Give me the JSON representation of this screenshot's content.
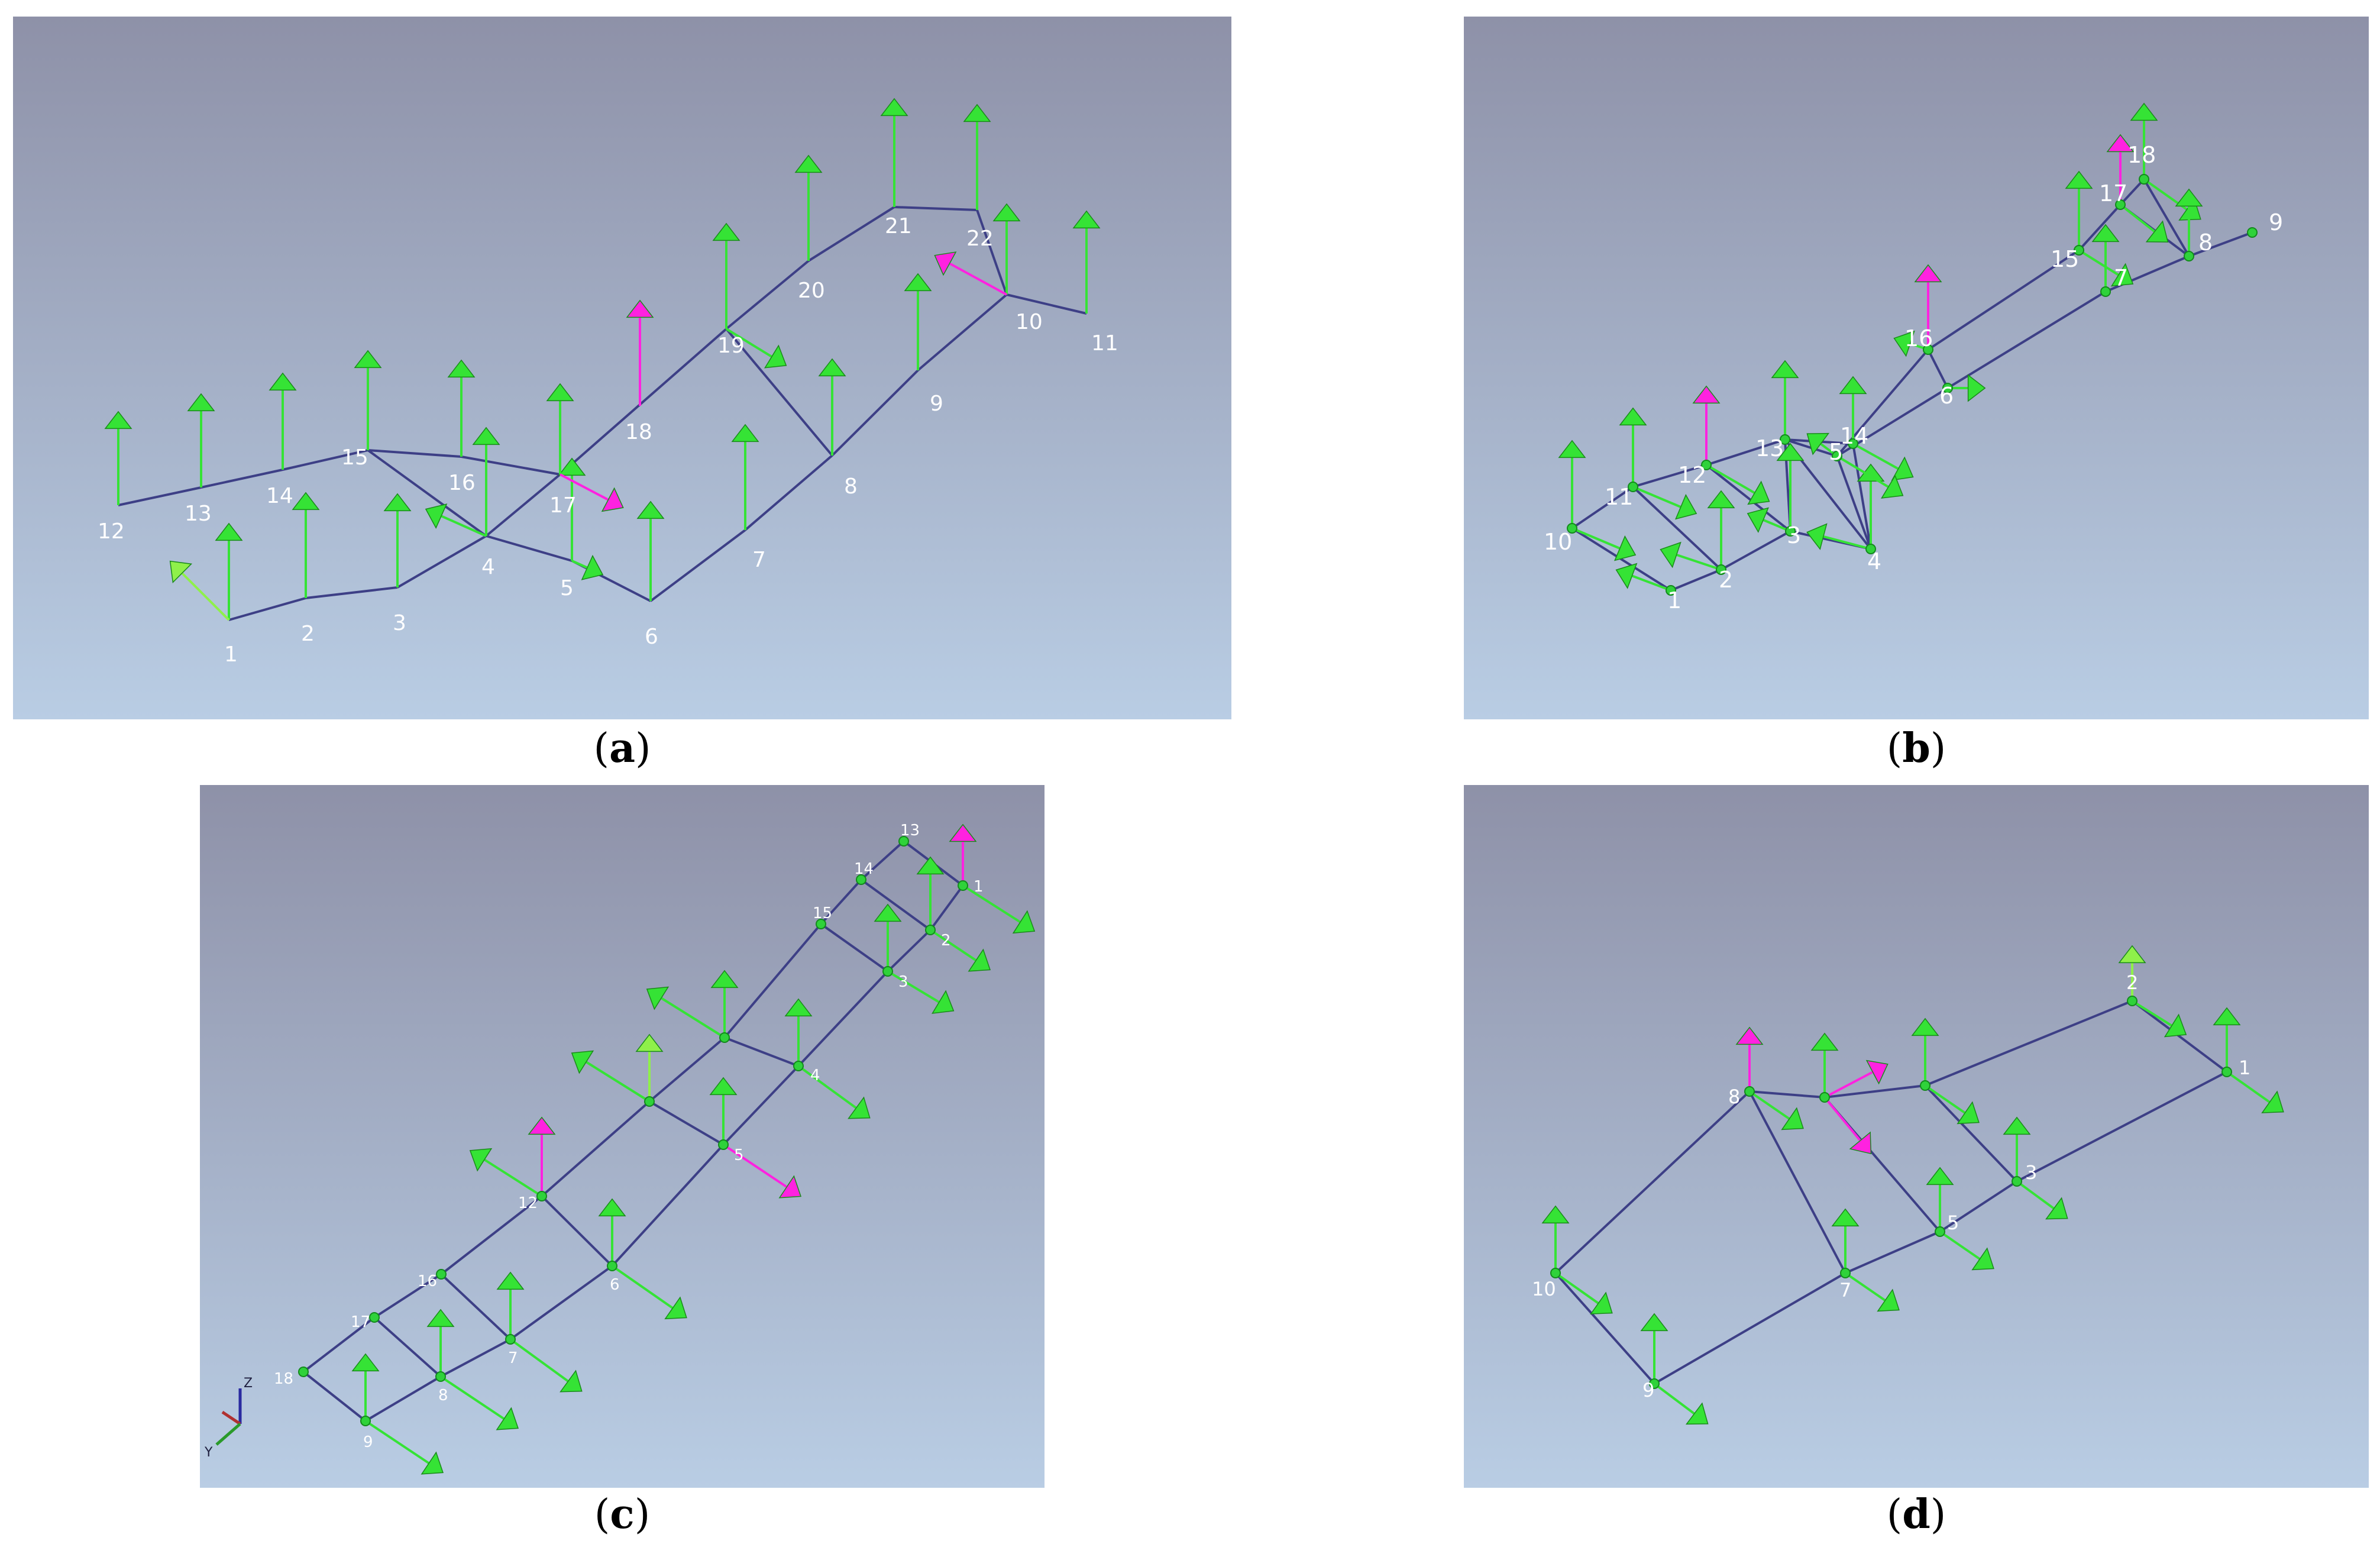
{
  "colors": {
    "bg_top": "#8e91a8",
    "bg_bottom": "#b9cde4",
    "edge": "#3d3f86",
    "node": "#2fd23a",
    "arrow_green": "#35e335",
    "arrow_light": "#8ff04a",
    "arrow_magenta": "#ff22e0",
    "label": "#ffffff"
  },
  "icons": {
    "axis_triad": "xyz-axis-triad-icon"
  },
  "panels": [
    {
      "id": "a",
      "caption": "a",
      "show_nodes": false,
      "nodes": [
        {
          "id": "1",
          "label": "1"
        },
        {
          "id": "2",
          "label": "2"
        },
        {
          "id": "3",
          "label": "3"
        },
        {
          "id": "4",
          "label": "4"
        },
        {
          "id": "5",
          "label": "5"
        },
        {
          "id": "6",
          "label": "6"
        },
        {
          "id": "7",
          "label": "7"
        },
        {
          "id": "8",
          "label": "8"
        },
        {
          "id": "9",
          "label": "9"
        },
        {
          "id": "10",
          "label": "10"
        },
        {
          "id": "11",
          "label": "11"
        },
        {
          "id": "12",
          "label": "12"
        },
        {
          "id": "13",
          "label": "13"
        },
        {
          "id": "14",
          "label": "14"
        },
        {
          "id": "15",
          "label": "15"
        },
        {
          "id": "16",
          "label": "16"
        },
        {
          "id": "17",
          "label": "17"
        },
        {
          "id": "18",
          "label": "18"
        },
        {
          "id": "19",
          "label": "19"
        },
        {
          "id": "20",
          "label": "20"
        },
        {
          "id": "21",
          "label": "21"
        },
        {
          "id": "22",
          "label": "22"
        }
      ],
      "edges": [
        [
          "1",
          "2"
        ],
        [
          "2",
          "3"
        ],
        [
          "3",
          "4"
        ],
        [
          "4",
          "5"
        ],
        [
          "5",
          "6"
        ],
        [
          "6",
          "7"
        ],
        [
          "7",
          "8"
        ],
        [
          "8",
          "9"
        ],
        [
          "9",
          "10"
        ],
        [
          "10",
          "11"
        ],
        [
          "12",
          "13"
        ],
        [
          "13",
          "14"
        ],
        [
          "14",
          "15"
        ],
        [
          "15",
          "16"
        ],
        [
          "16",
          "17"
        ],
        [
          "17",
          "19"
        ],
        [
          "19",
          "20"
        ],
        [
          "20",
          "21"
        ],
        [
          "21",
          "22"
        ],
        [
          "22",
          "10"
        ],
        [
          "15",
          "4"
        ],
        [
          "4",
          "17"
        ],
        [
          "19",
          "8"
        ]
      ]
    },
    {
      "id": "b",
      "caption": "b",
      "show_nodes": true,
      "nodes": [
        {
          "id": "1",
          "label": "1"
        },
        {
          "id": "2",
          "label": "2"
        },
        {
          "id": "3",
          "label": "3"
        },
        {
          "id": "4",
          "label": "4"
        },
        {
          "id": "5",
          "label": "5"
        },
        {
          "id": "6",
          "label": "6"
        },
        {
          "id": "7",
          "label": "7"
        },
        {
          "id": "8",
          "label": "8"
        },
        {
          "id": "9",
          "label": "9"
        },
        {
          "id": "10",
          "label": "10"
        },
        {
          "id": "11",
          "label": "11"
        },
        {
          "id": "12",
          "label": "12"
        },
        {
          "id": "13",
          "label": "13"
        },
        {
          "id": "14",
          "label": "14"
        },
        {
          "id": "15",
          "label": "15"
        },
        {
          "id": "16",
          "label": "16"
        },
        {
          "id": "17",
          "label": "17"
        },
        {
          "id": "18",
          "label": "18"
        }
      ],
      "edges": [
        [
          "10",
          "1"
        ],
        [
          "1",
          "2"
        ],
        [
          "2",
          "3"
        ],
        [
          "3",
          "4"
        ],
        [
          "10",
          "11"
        ],
        [
          "11",
          "12"
        ],
        [
          "12",
          "13"
        ],
        [
          "13",
          "14"
        ],
        [
          "11",
          "2"
        ],
        [
          "12",
          "3"
        ],
        [
          "13",
          "3"
        ],
        [
          "13",
          "4"
        ],
        [
          "14",
          "4"
        ],
        [
          "13",
          "5"
        ],
        [
          "5",
          "4"
        ],
        [
          "5",
          "16"
        ],
        [
          "16",
          "15"
        ],
        [
          "15",
          "17"
        ],
        [
          "17",
          "18"
        ],
        [
          "18",
          "8"
        ],
        [
          "8",
          "9"
        ],
        [
          "17",
          "8"
        ],
        [
          "5",
          "6"
        ],
        [
          "6",
          "7"
        ],
        [
          "7",
          "8"
        ],
        [
          "16",
          "6"
        ]
      ]
    },
    {
      "id": "c",
      "caption": "c",
      "show_nodes": true,
      "axis_labels": {
        "z": "Z",
        "y": "Y"
      },
      "nodes": [
        {
          "id": "1",
          "label": "1"
        },
        {
          "id": "2",
          "label": "2"
        },
        {
          "id": "3",
          "label": "3"
        },
        {
          "id": "4",
          "label": "4"
        },
        {
          "id": "5",
          "label": "5"
        },
        {
          "id": "6",
          "label": "6"
        },
        {
          "id": "7",
          "label": "7"
        },
        {
          "id": "8",
          "label": "8"
        },
        {
          "id": "9",
          "label": "9"
        },
        {
          "id": "10",
          "label": ""
        },
        {
          "id": "11",
          "label": ""
        },
        {
          "id": "12",
          "label": "12"
        },
        {
          "id": "13",
          "label": "13"
        },
        {
          "id": "14",
          "label": "14"
        },
        {
          "id": "15",
          "label": "15"
        },
        {
          "id": "16",
          "label": "16"
        },
        {
          "id": "17",
          "label": "17"
        },
        {
          "id": "18",
          "label": "18"
        }
      ],
      "edges": [
        [
          "13",
          "1"
        ],
        [
          "1",
          "2"
        ],
        [
          "2",
          "3"
        ],
        [
          "3",
          "4"
        ],
        [
          "4",
          "5"
        ],
        [
          "5",
          "6"
        ],
        [
          "6",
          "7"
        ],
        [
          "7",
          "8"
        ],
        [
          "8",
          "9"
        ],
        [
          "13",
          "14"
        ],
        [
          "14",
          "15"
        ],
        [
          "15",
          "10"
        ],
        [
          "10",
          "11"
        ],
        [
          "11",
          "12"
        ],
        [
          "12",
          "16"
        ],
        [
          "16",
          "17"
        ],
        [
          "17",
          "18"
        ],
        [
          "18",
          "9"
        ],
        [
          "14",
          "2"
        ],
        [
          "15",
          "3"
        ],
        [
          "10",
          "4"
        ],
        [
          "11",
          "5"
        ],
        [
          "12",
          "6"
        ],
        [
          "16",
          "7"
        ],
        [
          "17",
          "8"
        ]
      ]
    },
    {
      "id": "d",
      "caption": "d",
      "show_nodes": true,
      "nodes": [
        {
          "id": "1",
          "label": "1"
        },
        {
          "id": "2",
          "label": "2"
        },
        {
          "id": "3",
          "label": "3"
        },
        {
          "id": "4",
          "label": ""
        },
        {
          "id": "5",
          "label": "5"
        },
        {
          "id": "6",
          "label": ""
        },
        {
          "id": "7",
          "label": "7"
        },
        {
          "id": "8",
          "label": "8"
        },
        {
          "id": "9",
          "label": "9"
        },
        {
          "id": "10",
          "label": "10"
        }
      ],
      "edges": [
        [
          "2",
          "1"
        ],
        [
          "1",
          "3"
        ],
        [
          "3",
          "5"
        ],
        [
          "5",
          "7"
        ],
        [
          "7",
          "9"
        ],
        [
          "9",
          "10"
        ],
        [
          "10",
          "8"
        ],
        [
          "8",
          "6"
        ],
        [
          "6",
          "4"
        ],
        [
          "4",
          "2"
        ],
        [
          "8",
          "7"
        ],
        [
          "6",
          "5"
        ],
        [
          "4",
          "3"
        ]
      ]
    }
  ]
}
